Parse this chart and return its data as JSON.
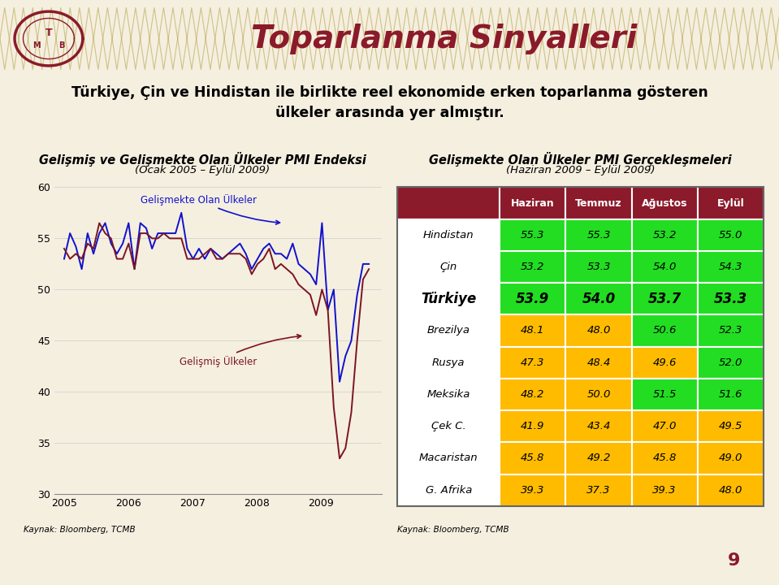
{
  "title_main": "Toparlanma Sinyalleri",
  "subtitle_text": "Türkiye, Çin ve Hindistan ile birlikte reel ekonomide erken toparlanma gösteren\nülkeler arasında yer almıştır.",
  "chart_title": "Gelişmiş ve Gelişmekte Olan Ülkeler PMI Endeksi",
  "chart_subtitle": "(Ocak 2005 – Eylül 2009)",
  "table_title": "Gelişmekte Olan Ülkeler PMI Gerçekleşmeleri",
  "table_subtitle": "(Haziran 2009 – Eylül 2009)",
  "source_left": "Kaynak: Bloomberg, TCMB",
  "source_right": "Kaynak: Bloomberg, TCMB",
  "page_number": "9",
  "bg_color": "#f5efe0",
  "header_bg": "#cfc080",
  "header_pattern_color": "#bfae60",
  "table_header_bg": "#8b1a2a",
  "table_header_text": "#ffffff",
  "green_color": "#22dd22",
  "orange_color": "#ffbb00",
  "col_headers": [
    "Haziran",
    "Temmuz",
    "Ağustos",
    "Eylül"
  ],
  "rows": [
    {
      "name": "Hindistan",
      "values": [
        55.3,
        55.3,
        53.2,
        55.0
      ],
      "bold": false,
      "colors": [
        "green",
        "green",
        "green",
        "green"
      ]
    },
    {
      "name": "Çin",
      "values": [
        53.2,
        53.3,
        54.0,
        54.3
      ],
      "bold": false,
      "colors": [
        "green",
        "green",
        "green",
        "green"
      ]
    },
    {
      "name": "Türkiye",
      "values": [
        53.9,
        54.0,
        53.7,
        53.3
      ],
      "bold": true,
      "colors": [
        "green",
        "green",
        "green",
        "green"
      ]
    },
    {
      "name": "Brezilya",
      "values": [
        48.1,
        48.0,
        50.6,
        52.3
      ],
      "bold": false,
      "colors": [
        "orange",
        "orange",
        "green",
        "green"
      ]
    },
    {
      "name": "Rusya",
      "values": [
        47.3,
        48.4,
        49.6,
        52.0
      ],
      "bold": false,
      "colors": [
        "orange",
        "orange",
        "orange",
        "green"
      ]
    },
    {
      "name": "Meksika",
      "values": [
        48.2,
        50.0,
        51.5,
        51.6
      ],
      "bold": false,
      "colors": [
        "orange",
        "orange",
        "green",
        "green"
      ]
    },
    {
      "name": "Çek C.",
      "values": [
        41.9,
        43.4,
        47.0,
        49.5
      ],
      "bold": false,
      "colors": [
        "orange",
        "orange",
        "orange",
        "orange"
      ]
    },
    {
      "name": "Macaristan",
      "values": [
        45.8,
        49.2,
        45.8,
        49.0
      ],
      "bold": false,
      "colors": [
        "orange",
        "orange",
        "orange",
        "orange"
      ]
    },
    {
      "name": "G. Afrika",
      "values": [
        39.3,
        37.3,
        39.3,
        48.0
      ],
      "bold": false,
      "colors": [
        "orange",
        "orange",
        "orange",
        "orange"
      ]
    }
  ],
  "ylim": [
    30,
    60
  ],
  "yticks": [
    30,
    35,
    40,
    45,
    50,
    55,
    60
  ],
  "line_gelismekte_color": "#1111cc",
  "line_gelismekte_label": "Gelişmekte Olan Ülkeler",
  "line_gelismis_color": "#7b1520",
  "line_gelismis_label": "Gelişmiş Ülkeler",
  "gelismekte_data": [
    53.0,
    55.5,
    54.2,
    52.0,
    55.5,
    53.5,
    55.5,
    56.5,
    54.5,
    53.5,
    54.5,
    56.5,
    52.0,
    56.5,
    56.0,
    54.0,
    55.5,
    55.5,
    55.5,
    55.5,
    57.5,
    54.0,
    53.0,
    54.0,
    53.0,
    54.0,
    53.5,
    53.0,
    53.5,
    54.0,
    54.5,
    53.5,
    52.0,
    53.0,
    54.0,
    54.5,
    53.5,
    53.5,
    53.0,
    54.5,
    52.5,
    52.0,
    51.5,
    50.5,
    56.5,
    48.0,
    50.0,
    41.0,
    43.5,
    45.0,
    49.5,
    52.5,
    52.5
  ],
  "gelismis_data": [
    54.0,
    53.0,
    53.5,
    53.0,
    54.5,
    54.0,
    56.5,
    55.5,
    55.0,
    53.0,
    53.0,
    54.5,
    52.0,
    55.5,
    55.5,
    55.0,
    55.0,
    55.5,
    55.0,
    55.0,
    55.0,
    53.0,
    53.0,
    53.0,
    53.5,
    54.0,
    53.0,
    53.0,
    53.5,
    53.5,
    53.5,
    53.0,
    51.5,
    52.5,
    53.0,
    54.0,
    52.0,
    52.5,
    52.0,
    51.5,
    50.5,
    50.0,
    49.5,
    47.5,
    50.0,
    48.0,
    38.5,
    33.5,
    34.5,
    38.0,
    45.0,
    51.0,
    52.0
  ]
}
